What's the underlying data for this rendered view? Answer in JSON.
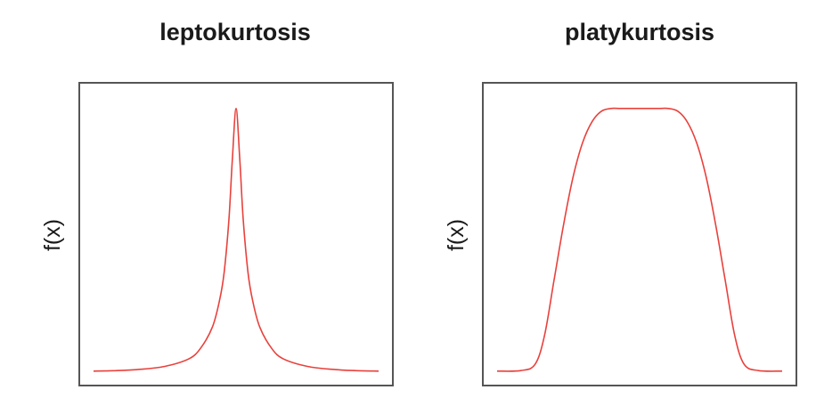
{
  "chart_data": [
    {
      "type": "line",
      "title": "leptokurtosis",
      "xlabel": "",
      "ylabel": "f(x)",
      "ylim": [
        0,
        1.05
      ],
      "xlim": [
        -3.3,
        3.3
      ],
      "grid": false,
      "line_color": "#e8413c",
      "series": [
        {
          "x": [
            -3.0,
            -2.5,
            -2.0,
            -1.5,
            -1.0,
            -0.75,
            -0.5,
            -0.35,
            -0.25,
            -0.15,
            -0.08,
            0.0,
            0.08,
            0.15,
            0.25,
            0.35,
            0.5,
            0.75,
            1.0,
            1.5,
            2.0,
            2.5,
            3.0
          ],
          "y": [
            0.004,
            0.006,
            0.011,
            0.022,
            0.05,
            0.09,
            0.17,
            0.27,
            0.38,
            0.58,
            0.8,
            1.0,
            0.8,
            0.58,
            0.38,
            0.27,
            0.17,
            0.09,
            0.05,
            0.022,
            0.011,
            0.006,
            0.004
          ]
        }
      ]
    },
    {
      "type": "line",
      "title": "platykurtosis",
      "xlabel": "",
      "ylabel": "f(x)",
      "ylim": [
        0,
        1.05
      ],
      "xlim": [
        -3.3,
        3.3
      ],
      "grid": false,
      "line_color": "#e8413c",
      "series": [
        {
          "x": [
            -3.0,
            -2.5,
            -2.2,
            -2.0,
            -1.8,
            -1.6,
            -1.4,
            -1.2,
            -1.0,
            -0.8,
            -0.6,
            -0.4,
            0.0,
            0.4,
            0.6,
            0.8,
            1.0,
            1.2,
            1.4,
            1.6,
            1.8,
            2.0,
            2.2,
            2.5,
            3.0
          ],
          "y": [
            0.004,
            0.006,
            0.03,
            0.14,
            0.35,
            0.56,
            0.74,
            0.87,
            0.95,
            0.99,
            1.0,
            1.0,
            1.0,
            1.0,
            1.0,
            0.99,
            0.95,
            0.87,
            0.74,
            0.56,
            0.35,
            0.14,
            0.03,
            0.006,
            0.004
          ]
        }
      ]
    }
  ]
}
